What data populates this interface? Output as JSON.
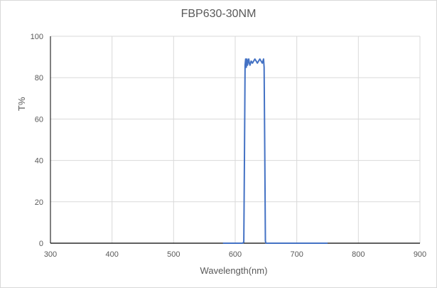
{
  "chart_data": {
    "type": "line",
    "title": "FBP630-30NM",
    "xlabel": "Wavelength(nm)",
    "ylabel": "T%",
    "xlim": [
      300,
      900
    ],
    "ylim": [
      0,
      100
    ],
    "xticks": [
      300,
      400,
      500,
      600,
      700,
      800,
      900
    ],
    "yticks": [
      0,
      20,
      40,
      60,
      80,
      100
    ],
    "grid": true,
    "line_color": "#4472c4",
    "series": [
      {
        "x": [
          580,
          600,
          612,
          614,
          615,
          616,
          617,
          618,
          619,
          620,
          621,
          622,
          623,
          624,
          626,
          628,
          630,
          632,
          634,
          636,
          638,
          640,
          642,
          644,
          646,
          647,
          648,
          649,
          650,
          652,
          700,
          750
        ],
        "y": [
          0,
          0,
          0,
          0.5,
          40,
          86,
          89,
          85,
          89,
          86,
          88,
          89,
          87,
          86,
          88,
          87,
          88,
          89,
          88,
          87,
          88,
          89,
          88,
          87,
          89,
          85,
          45,
          1,
          0,
          0,
          0,
          0
        ]
      }
    ]
  }
}
